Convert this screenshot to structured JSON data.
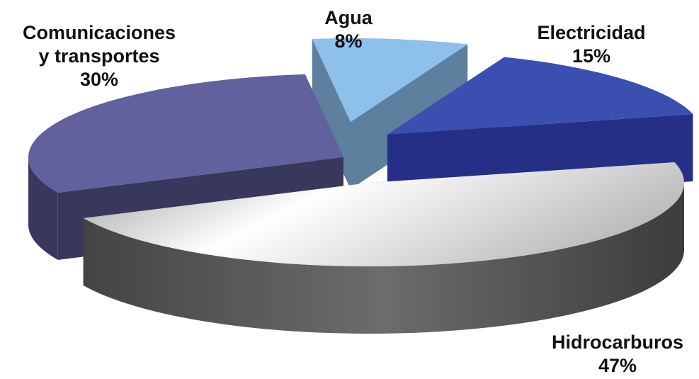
{
  "chart_data": {
    "type": "pie",
    "title": "",
    "slices": [
      {
        "category": "Agua",
        "category_lines": [
          "Agua"
        ],
        "value": 8,
        "value_label": "8%",
        "color": "#8EC0EC",
        "side_color": "#5F7F9E"
      },
      {
        "category": "Electricidad",
        "category_lines": [
          "Electricidad"
        ],
        "value": 15,
        "value_label": "15%",
        "color": "#3A4FB0",
        "side_color": "#262F86"
      },
      {
        "category": "Hidrocarburos",
        "category_lines": [
          "Hidrocarburos"
        ],
        "value": 47,
        "value_label": "47%",
        "color": "#E4E4E4",
        "side_color": "#4A4A4A"
      },
      {
        "category": "Comunicaciones y transportes",
        "category_lines": [
          "Comunicaciones",
          "y transportes"
        ],
        "value": 30,
        "value_label": "30%",
        "color": "#61619E",
        "side_color": "#38385C"
      }
    ],
    "style": "3d-exploded",
    "legend": "none"
  }
}
